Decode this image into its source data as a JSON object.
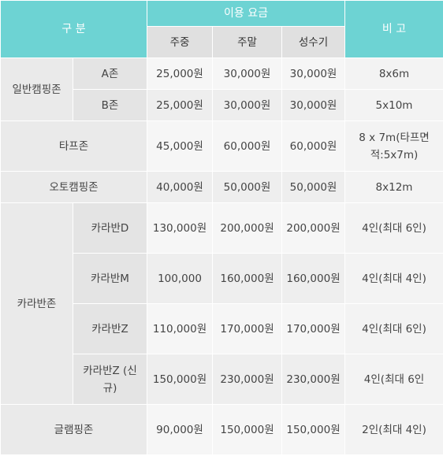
{
  "header": {
    "category": "구 분",
    "fee": "이용 요금",
    "note": "비 고",
    "weekday": "주중",
    "weekend": "주말",
    "peak": "성수기"
  },
  "general_zone": {
    "label": "일반캠핑존",
    "rows": [
      {
        "sub": "A존",
        "weekday": "25,000원",
        "weekend": "30,000원",
        "peak": "30,000원",
        "note": "8x6m"
      },
      {
        "sub": "B존",
        "weekday": "25,000원",
        "weekend": "30,000원",
        "peak": "30,000원",
        "note": "5x10m"
      }
    ]
  },
  "tarp_zone": {
    "label": "타프존",
    "weekday": "45,000원",
    "weekend": "60,000원",
    "peak": "60,000원",
    "note": "8 x 7m(타프면적:5x7m)"
  },
  "auto_zone": {
    "label": "오토캠핑존",
    "weekday": "40,000원",
    "weekend": "50,000원",
    "peak": "50,000원",
    "note": "8x12m"
  },
  "caravan_zone": {
    "label": "카라반존",
    "rows": [
      {
        "sub": "카라반D",
        "weekday": "130,000원",
        "weekend": "200,000원",
        "peak": "200,000원",
        "note": "4인(최대 6인)"
      },
      {
        "sub": "카라반M",
        "weekday": "100,000",
        "weekend": "160,000원",
        "peak": "160,000원",
        "note": "4인(최대 4인)"
      },
      {
        "sub": "카라반Z",
        "weekday": "110,000원",
        "weekend": "170,000원",
        "peak": "170,000원",
        "note": "4인(최대 6인)"
      },
      {
        "sub": "카라반Z (신규)",
        "weekday": "150,000원",
        "weekend": "230,000원",
        "peak": "230,000원",
        "note": "4인(최대 6인"
      }
    ]
  },
  "glamping_zone": {
    "label": "글램핑존",
    "weekday": "90,000원",
    "weekend": "150,000원",
    "peak": "150,000원",
    "note": "2인(최대 4인)"
  }
}
